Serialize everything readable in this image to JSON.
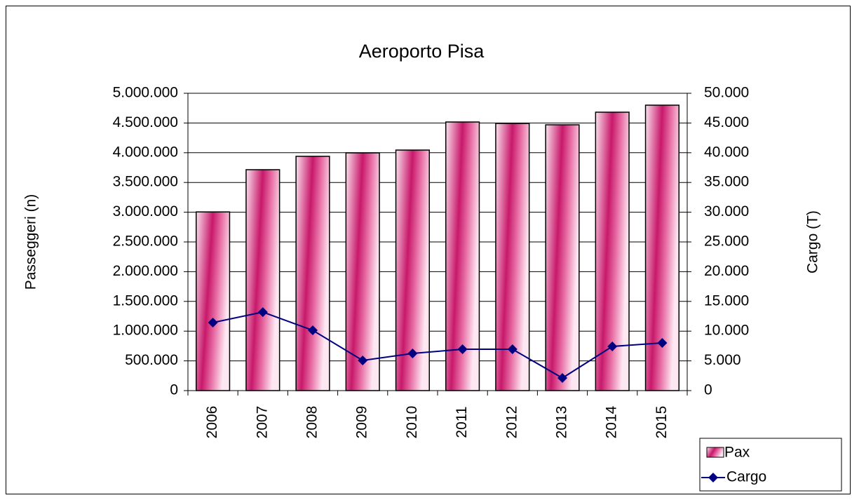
{
  "chart_data": {
    "type": "bar",
    "title": "Aeroporto Pisa",
    "ylabel": "Passeggeri (n)",
    "y2label": "Cargo (T)",
    "categories": [
      "2006",
      "2007",
      "2008",
      "2009",
      "2010",
      "2011",
      "2012",
      "2013",
      "2014",
      "2015"
    ],
    "series": [
      {
        "name": "Pax",
        "type": "bar",
        "color": "#c8186a",
        "values": [
          3005000,
          3715000,
          3940000,
          3998000,
          4045000,
          4517000,
          4493000,
          4470000,
          4682000,
          4800000
        ]
      },
      {
        "name": "Cargo",
        "type": "line",
        "axis": "y2",
        "color": "#000080",
        "values": [
          11440,
          13200,
          10140,
          5070,
          6250,
          6960,
          6960,
          2120,
          7430,
          8020
        ]
      }
    ],
    "ylim": [
      0,
      5000000
    ],
    "yticks": [
      0,
      {
        "value": 500000,
        "label": "500.000"
      },
      {
        "value": 1000000,
        "label": "1.000.000"
      },
      {
        "value": 1500000,
        "label": "1.500.000"
      },
      {
        "value": 2000000,
        "label": "2.000.000"
      },
      {
        "value": 2500000,
        "label": "2.500.000"
      },
      {
        "value": 3000000,
        "label": "3.000.000"
      },
      {
        "value": 3500000,
        "label": "3.500.000"
      },
      {
        "value": 4000000,
        "label": "4.000.000"
      },
      {
        "value": 4500000,
        "label": "4.500.000"
      },
      {
        "value": 5000000,
        "label": "5.000.000"
      }
    ],
    "y2lim": [
      0,
      50000
    ],
    "y2ticks": [
      0,
      {
        "value": 5000,
        "label": "5.000"
      },
      {
        "value": 10000,
        "label": "10.000"
      },
      {
        "value": 15000,
        "label": "15.000"
      },
      {
        "value": 20000,
        "label": "20.000"
      },
      {
        "value": 25000,
        "label": "25.000"
      },
      {
        "value": 30000,
        "label": "30.000"
      },
      {
        "value": 35000,
        "label": "35.000"
      },
      {
        "value": 40000,
        "label": "40.000"
      },
      {
        "value": 45000,
        "label": "45.000"
      },
      {
        "value": 50000,
        "label": "50.000"
      }
    ],
    "grid": true,
    "legend": "bottom-right"
  }
}
